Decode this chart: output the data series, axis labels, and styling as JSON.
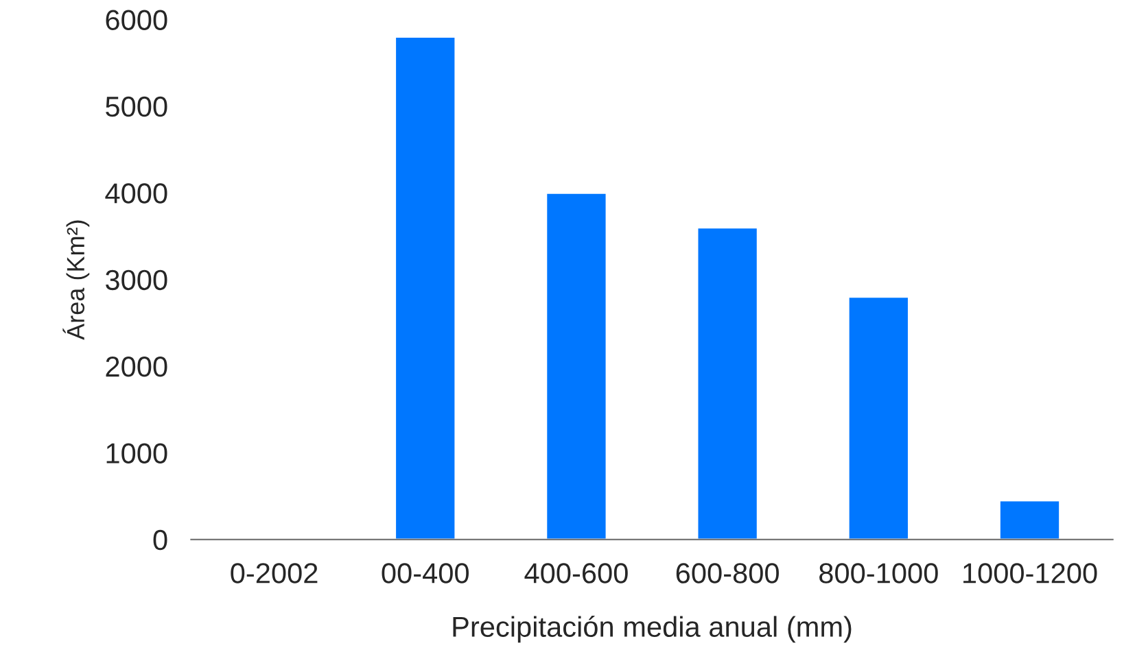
{
  "chart_data": {
    "type": "bar",
    "xlabel": "Precipitación media anual (mm)",
    "ylabel": "Área (Km²)",
    "categories": [
      "0-2002",
      "00-400",
      "400-600",
      "600-800",
      "800-1000",
      "1000-1200"
    ],
    "values": [
      null,
      5800,
      4000,
      3600,
      2800,
      450
    ],
    "color": "#0077ff",
    "ylim": [
      0,
      6000
    ],
    "yticks": [
      0,
      1000,
      2000,
      3000,
      4000,
      5000,
      6000
    ],
    "grid": false
  }
}
